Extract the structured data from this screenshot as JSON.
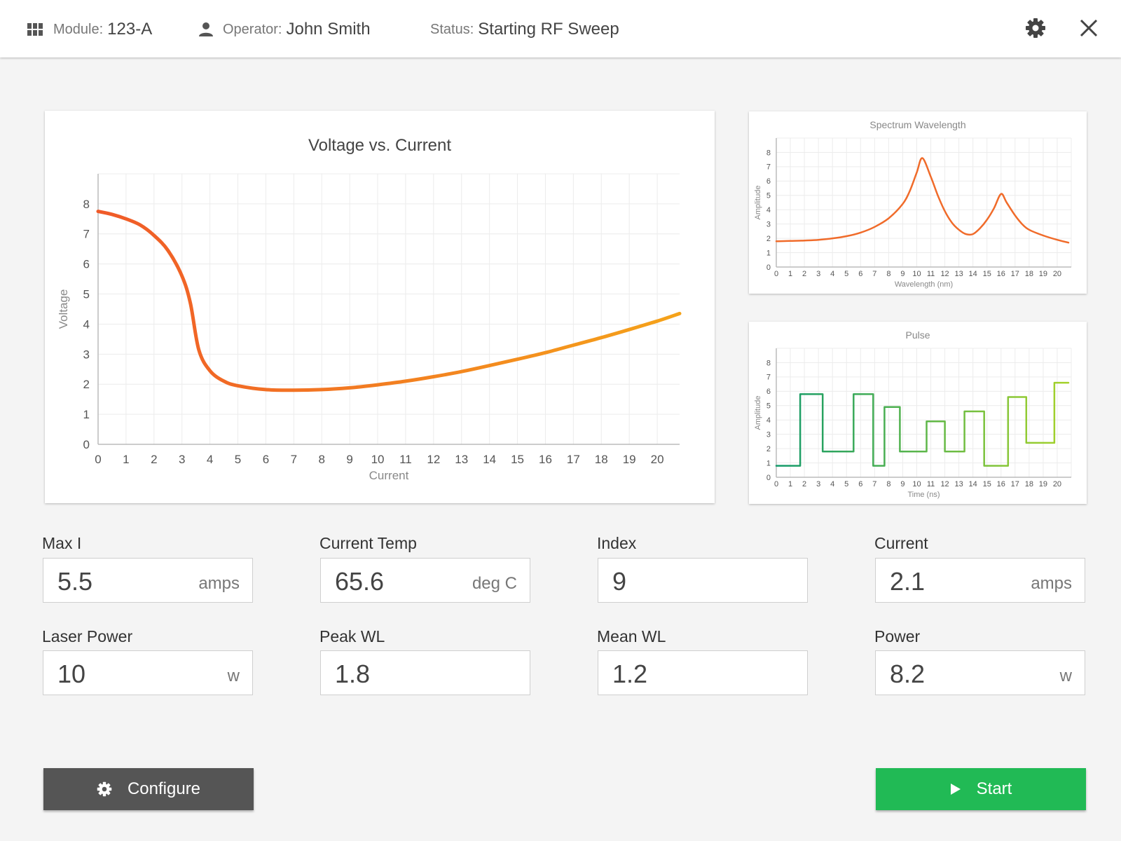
{
  "header": {
    "module_label": "Module:",
    "module_value": "123-A",
    "operator_label": "Operator:",
    "operator_value": "John Smith",
    "status_label": "Status:",
    "status_value": "Starting RF Sweep",
    "icons": [
      "grid-icon",
      "person-icon",
      "gear-icon",
      "close-icon"
    ]
  },
  "fields": [
    {
      "label": "Max I",
      "value": "5.5",
      "unit": "amps"
    },
    {
      "label": "Current Temp",
      "value": "65.6",
      "unit": "deg C"
    },
    {
      "label": "Index",
      "value": "9",
      "unit": ""
    },
    {
      "label": "Current",
      "value": "2.1",
      "unit": "amps"
    },
    {
      "label": "Laser Power",
      "value": "10",
      "unit": "w"
    },
    {
      "label": "Peak WL",
      "value": "1.8",
      "unit": ""
    },
    {
      "label": "Mean WL",
      "value": "1.2",
      "unit": ""
    },
    {
      "label": "Power",
      "value": "8.2",
      "unit": "w"
    }
  ],
  "buttons": {
    "configure_label": "Configure",
    "start_label": "Start"
  },
  "colors": {
    "configure_bg": "#555555",
    "start_bg": "#21ba55",
    "vc_line_start": "#f05a28",
    "vc_line_end": "#f5a31a",
    "spectrum_line": "#f06b2a",
    "pulse_line_start": "#129a6a",
    "pulse_line_end": "#a6d22a"
  },
  "chart_data": [
    {
      "type": "line",
      "title": "Voltage vs. Current",
      "xlabel": "Current",
      "ylabel": "Voltage",
      "xlim": [
        0,
        20.8
      ],
      "ylim": [
        0,
        9
      ],
      "xticks": [
        0,
        1,
        2,
        3,
        4,
        5,
        6,
        7,
        8,
        9,
        10,
        11,
        12,
        13,
        14,
        15,
        16,
        17,
        18,
        19,
        20
      ],
      "yticks": [
        0,
        1,
        2,
        3,
        4,
        5,
        6,
        7,
        8
      ],
      "grid": true,
      "x": [
        0,
        0.5,
        1,
        1.5,
        2,
        2.5,
        3,
        3.3,
        3.6,
        4,
        4.5,
        5,
        6,
        7,
        8,
        9,
        10,
        11,
        12,
        13,
        14,
        15,
        16,
        17,
        18,
        19,
        20,
        20.8
      ],
      "y": [
        7.75,
        7.65,
        7.5,
        7.3,
        6.95,
        6.45,
        5.6,
        4.7,
        3.15,
        2.45,
        2.1,
        1.95,
        1.82,
        1.8,
        1.82,
        1.88,
        1.98,
        2.1,
        2.25,
        2.42,
        2.62,
        2.83,
        3.05,
        3.3,
        3.55,
        3.82,
        4.1,
        4.35
      ]
    },
    {
      "type": "line",
      "title": "Spectrum Wavelength",
      "xlabel": "Wavelength (nm)",
      "ylabel": "Amplitude",
      "xlim": [
        0,
        21
      ],
      "ylim": [
        0,
        9
      ],
      "xticks": [
        0,
        1,
        2,
        3,
        4,
        5,
        6,
        7,
        8,
        9,
        10,
        11,
        12,
        13,
        14,
        15,
        16,
        17,
        18,
        19,
        20
      ],
      "yticks": [
        0,
        1,
        2,
        3,
        4,
        5,
        6,
        7,
        8
      ],
      "grid": true,
      "x": [
        0,
        1,
        2,
        3,
        4,
        5,
        6,
        7,
        8,
        9,
        9.5,
        10,
        10.4,
        11,
        11.5,
        12,
        12.5,
        13,
        13.5,
        14,
        14.5,
        15,
        15.5,
        16,
        16.4,
        17,
        17.5,
        18,
        19,
        20,
        20.8
      ],
      "y": [
        1.8,
        1.82,
        1.85,
        1.9,
        2.0,
        2.15,
        2.4,
        2.8,
        3.4,
        4.4,
        5.3,
        6.6,
        7.6,
        6.3,
        5.0,
        3.9,
        3.1,
        2.6,
        2.3,
        2.3,
        2.7,
        3.3,
        4.1,
        5.1,
        4.5,
        3.6,
        3.0,
        2.6,
        2.2,
        1.9,
        1.7
      ]
    },
    {
      "type": "line",
      "title": "Pulse",
      "xlabel": "Time (ns)",
      "ylabel": "Amplitude",
      "xlim": [
        0,
        21
      ],
      "ylim": [
        0,
        9
      ],
      "xticks": [
        0,
        1,
        2,
        3,
        4,
        5,
        6,
        7,
        8,
        9,
        10,
        11,
        12,
        13,
        14,
        15,
        16,
        17,
        18,
        19,
        20
      ],
      "yticks": [
        0,
        1,
        2,
        3,
        4,
        5,
        6,
        7,
        8
      ],
      "grid": true,
      "step": true,
      "x": [
        0,
        1.7,
        1.7,
        3.3,
        3.3,
        5.5,
        5.5,
        6.9,
        6.9,
        7.7,
        7.7,
        8.8,
        8.8,
        10.7,
        10.7,
        12,
        12,
        13.4,
        13.4,
        14.8,
        14.8,
        16.5,
        16.5,
        17.8,
        17.8,
        19.8,
        19.8,
        20.8
      ],
      "y": [
        0.8,
        0.8,
        5.8,
        5.8,
        1.8,
        1.8,
        5.8,
        5.8,
        0.8,
        0.8,
        4.9,
        4.9,
        1.8,
        1.8,
        3.9,
        3.9,
        1.8,
        1.8,
        4.6,
        4.6,
        0.8,
        0.8,
        5.6,
        5.6,
        2.4,
        2.4,
        6.6,
        6.6
      ]
    }
  ]
}
